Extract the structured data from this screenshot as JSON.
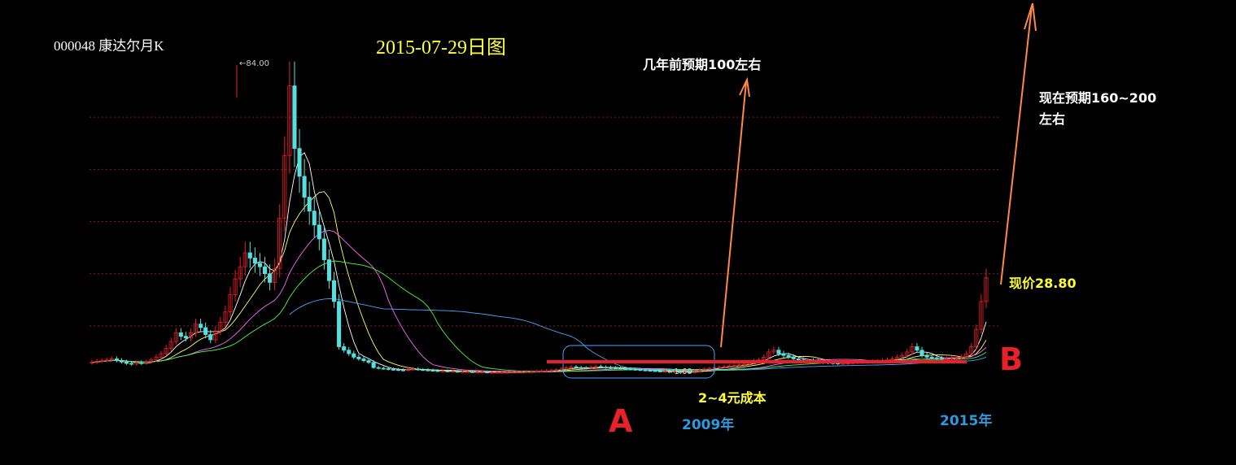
{
  "header": {
    "stock": "000048  康达尔月K",
    "date_title": "2015-07-29日图"
  },
  "annotations": {
    "prior_expectation": "几年前预期100左右",
    "current_expectation_line1": "现在预期160~200",
    "current_expectation_line2": "左右",
    "current_price": "现价28.80",
    "cost": "2~4元成本",
    "mark_a": "A",
    "mark_b": "B",
    "year_a": "2009年",
    "year_b": "2015年",
    "high_label": "84.00",
    "low_label": "1.60"
  },
  "colors": {
    "background": "#000000",
    "grid": "#8a1a1a",
    "up_candle": "#e8202a",
    "down_candle": "#55e0e0",
    "ma5": "#ffffff",
    "ma10": "#ffff66",
    "ma20": "#ff66ff",
    "ma30": "#44ff44",
    "ma60": "#4aa3ff",
    "arrow": "#ff8844",
    "baseline": "#e8202a",
    "box": "#4aa3ff"
  },
  "chart_data": {
    "type": "candlestick",
    "period": "monthly",
    "ylim": [
      0,
      90
    ],
    "grid_values": [
      15,
      30,
      45,
      60,
      75
    ],
    "high": 84.0,
    "low": 1.6,
    "last_close": 28.8,
    "moving_averages": [
      "MA5",
      "MA10",
      "MA20",
      "MA30",
      "MA60"
    ],
    "close_series": [
      4.5,
      4.8,
      5.0,
      5.2,
      5.5,
      5.0,
      4.6,
      4.2,
      4.0,
      4.4,
      4.2,
      4.6,
      5.2,
      6.0,
      7.0,
      8.5,
      10.5,
      13.0,
      12.0,
      11.5,
      13.0,
      15.5,
      14.5,
      12.5,
      11.0,
      13.5,
      16.0,
      19.0,
      24.0,
      28.5,
      32.0,
      36.0,
      34.5,
      33.0,
      32.0,
      30.0,
      27.5,
      31.5,
      46.0,
      64.0,
      84.0,
      66.0,
      58.0,
      52.0,
      48.0,
      44.0,
      40.0,
      34.0,
      28.0,
      22.0,
      9.0,
      8.0,
      7.0,
      6.0,
      5.5,
      5.0,
      4.5,
      3.0,
      2.8,
      2.7,
      2.5,
      2.4,
      2.3,
      2.2,
      2.5,
      2.6,
      2.4,
      2.3,
      2.2,
      2.1,
      2.0,
      2.0,
      1.9,
      1.9,
      1.8,
      1.8,
      1.8,
      1.7,
      1.7,
      1.7,
      1.6,
      1.6,
      1.6,
      1.6,
      1.6,
      1.7,
      1.7,
      1.7,
      1.8,
      1.8,
      1.9,
      2.0,
      2.1,
      2.2,
      2.4,
      2.6,
      2.9,
      3.2,
      3.0,
      2.9,
      2.8,
      3.1,
      3.3,
      3.1,
      3.0,
      2.9,
      2.8,
      2.7,
      2.6,
      2.5,
      2.4,
      2.3,
      2.2,
      2.1,
      2.0,
      1.9,
      1.9,
      1.8,
      1.8,
      1.7,
      1.7,
      1.6,
      2.0,
      2.3,
      2.6,
      2.8,
      3.0,
      3.1,
      3.3,
      3.5,
      3.6,
      3.8,
      4.0,
      4.4,
      4.8,
      5.2,
      6.0,
      7.5,
      8.0,
      7.0,
      6.5,
      6.0,
      5.5,
      5.2,
      5.0,
      5.0,
      4.8,
      4.6,
      4.5,
      4.4,
      4.3,
      4.2,
      4.2,
      4.3,
      4.4,
      4.5,
      4.5,
      4.6,
      4.7,
      4.8,
      5.0,
      5.2,
      5.5,
      6.0,
      6.5,
      7.5,
      9.0,
      8.0,
      6.5,
      6.0,
      5.8,
      5.6,
      5.5,
      5.5,
      5.6,
      5.8,
      6.0,
      7.0,
      9.0,
      14.0,
      22.0,
      28.8
    ]
  }
}
